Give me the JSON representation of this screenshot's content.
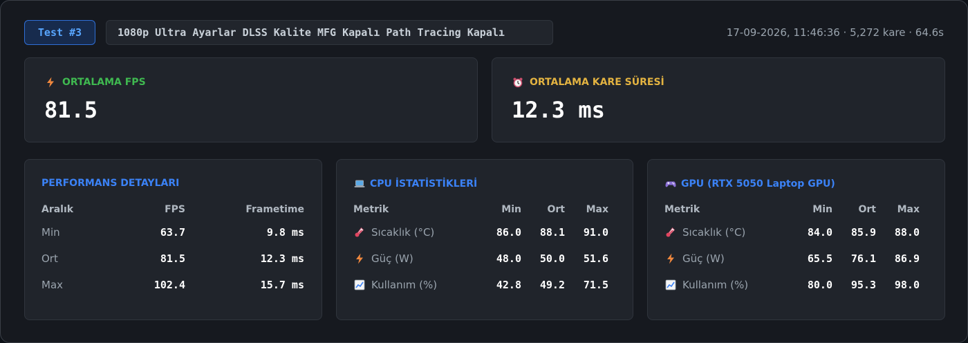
{
  "header": {
    "test_label": "Test #3",
    "settings": "1080p Ultra Ayarlar DLSS Kalite MFG Kapalı Path Tracing Kapalı",
    "meta": "17-09-2026, 11:46:36 · 5,272 kare · 64.6s"
  },
  "summary": {
    "fps": {
      "label": "ORTALAMA FPS",
      "value": "81.5",
      "icon": "lightning-icon",
      "color": "#3fb950"
    },
    "frametime": {
      "label": "ORTALAMA KARE SÜRESİ",
      "value": "12.3 ms",
      "icon": "alarm-clock-icon",
      "color": "#e3b341"
    }
  },
  "performance": {
    "title": "PERFORMANS DETAYLARI",
    "headers": [
      "Aralık",
      "FPS",
      "Frametime"
    ],
    "rows": [
      {
        "label": "Min",
        "fps": "63.7",
        "frametime": "9.8 ms"
      },
      {
        "label": "Ort",
        "fps": "81.5",
        "frametime": "12.3 ms"
      },
      {
        "label": "Max",
        "fps": "102.4",
        "frametime": "15.7 ms"
      }
    ]
  },
  "cpu": {
    "title": "CPU İSTATİSTİKLERİ",
    "icon": "laptop-icon",
    "headers": [
      "Metrik",
      "Min",
      "Ort",
      "Max"
    ],
    "rows": [
      {
        "label": "Sıcaklık (°C)",
        "icon": "thermometer-icon",
        "min": "86.0",
        "avg": "88.1",
        "max": "91.0"
      },
      {
        "label": "Güç (W)",
        "icon": "lightning-icon",
        "min": "48.0",
        "avg": "50.0",
        "max": "51.6"
      },
      {
        "label": "Kullanım (%)",
        "icon": "chart-increasing-icon",
        "min": "42.8",
        "avg": "49.2",
        "max": "71.5"
      }
    ]
  },
  "gpu": {
    "title": "GPU (RTX 5050 Laptop GPU)",
    "icon": "gamepad-icon",
    "headers": [
      "Metrik",
      "Min",
      "Ort",
      "Max"
    ],
    "rows": [
      {
        "label": "Sıcaklık (°C)",
        "icon": "thermometer-icon",
        "min": "84.0",
        "avg": "85.9",
        "max": "88.0"
      },
      {
        "label": "Güç (W)",
        "icon": "lightning-icon",
        "min": "65.5",
        "avg": "76.1",
        "max": "86.9"
      },
      {
        "label": "Kullanım (%)",
        "icon": "chart-increasing-icon",
        "min": "80.0",
        "avg": "95.3",
        "max": "98.0"
      }
    ]
  }
}
